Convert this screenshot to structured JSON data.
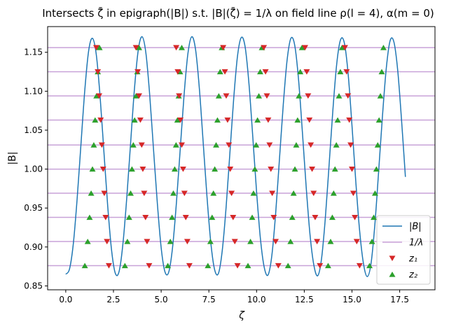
{
  "chart_data": {
    "type": "line",
    "title": "Intersects ζ̄ in epigraph(|B|) s.t. |B|(ζ̄) = 1/λ on field line ρ(l = 4), α(m = 0)",
    "xlabel": "ζ",
    "ylabel": "|B|",
    "xlim": [
      -0.95,
      19.35
    ],
    "ylim": [
      0.845,
      1.183
    ],
    "xticks": [
      0.0,
      2.5,
      5.0,
      7.5,
      10.0,
      12.5,
      15.0,
      17.5
    ],
    "xtick_labels": [
      "0.0",
      "2.5",
      "5.0",
      "7.5",
      "10.0",
      "12.5",
      "15.0",
      "17.5"
    ],
    "yticks": [
      0.85,
      0.9,
      0.95,
      1.0,
      1.05,
      1.1,
      1.15
    ],
    "ytick_labels": [
      "0.85",
      "0.90",
      "0.95",
      "1.00",
      "1.05",
      "1.10",
      "1.15"
    ],
    "grid": false,
    "legend_position": "lower-right",
    "colors": {
      "B": "#1f77b4",
      "lambda": "#c8a2d8",
      "z1": "#d62728",
      "z2": "#2ca02c"
    },
    "inv_lambda_levels": [
      0.876,
      0.907,
      0.938,
      0.969,
      1.0,
      1.031,
      1.063,
      1.094,
      1.125,
      1.156
    ],
    "B_curve": {
      "x": [
        0.0,
        0.2,
        0.4,
        0.6,
        0.8,
        1.0,
        1.2,
        1.4,
        1.6,
        1.8,
        2.0,
        2.2,
        2.4,
        2.6,
        2.8,
        3.0,
        3.2,
        3.4,
        3.6,
        3.8,
        4.0,
        4.2,
        4.4,
        4.6,
        4.8,
        5.0,
        5.2,
        5.4,
        5.6,
        5.8,
        6.0,
        6.2,
        6.4,
        6.6,
        6.8,
        7.0,
        7.2,
        7.4,
        7.6,
        7.8,
        8.0,
        8.2,
        8.4,
        8.6,
        8.8,
        9.0,
        9.2,
        9.4,
        9.6,
        9.8,
        10.0,
        10.2,
        10.4,
        10.6,
        10.8,
        11.0,
        11.2,
        11.4,
        11.6,
        11.8,
        12.0,
        12.2,
        12.4,
        12.6,
        12.8,
        13.0,
        13.2,
        13.4,
        13.6,
        13.8,
        14.0,
        14.2,
        14.4,
        14.6,
        14.8,
        15.0,
        15.2,
        15.4,
        15.6,
        15.8,
        16.0,
        16.2,
        16.4,
        16.6,
        16.8,
        17.0,
        17.2,
        17.4,
        17.6,
        17.8
      ],
      "y": [
        0.865,
        0.872,
        0.905,
        0.963,
        1.033,
        1.102,
        1.152,
        1.168,
        1.147,
        1.093,
        1.022,
        0.952,
        0.896,
        0.866,
        0.869,
        0.905,
        0.964,
        1.034,
        1.103,
        1.153,
        1.17,
        1.149,
        1.095,
        1.025,
        0.956,
        0.899,
        0.868,
        0.868,
        0.9,
        0.957,
        1.026,
        1.095,
        1.148,
        1.17,
        1.154,
        1.104,
        1.035,
        0.965,
        0.906,
        0.871,
        0.866,
        0.895,
        0.95,
        1.02,
        1.09,
        1.145,
        1.169,
        1.157,
        1.11,
        1.042,
        0.971,
        0.911,
        0.874,
        0.864,
        0.889,
        0.943,
        1.013,
        1.083,
        1.14,
        1.168,
        1.159,
        1.115,
        1.048,
        0.977,
        0.916,
        0.877,
        0.863,
        0.884,
        0.936,
        1.005,
        1.076,
        1.135,
        1.166,
        1.162,
        1.122,
        1.056,
        0.984,
        0.921,
        0.879,
        0.862,
        0.879,
        0.929,
        0.998,
        1.069,
        1.13,
        1.165,
        1.163,
        1.126,
        1.062,
        0.99
      ]
    },
    "z1_points": [
      {
        "x": 1.6,
        "y": 1.156
      },
      {
        "x": 1.68,
        "y": 1.125
      },
      {
        "x": 1.75,
        "y": 1.094
      },
      {
        "x": 1.83,
        "y": 1.063
      },
      {
        "x": 1.89,
        "y": 1.031
      },
      {
        "x": 1.96,
        "y": 1.0
      },
      {
        "x": 2.02,
        "y": 0.969
      },
      {
        "x": 2.09,
        "y": 0.938
      },
      {
        "x": 2.16,
        "y": 0.907
      },
      {
        "x": 2.26,
        "y": 0.876
      },
      {
        "x": 3.68,
        "y": 1.156
      },
      {
        "x": 3.77,
        "y": 1.125
      },
      {
        "x": 3.84,
        "y": 1.094
      },
      {
        "x": 3.91,
        "y": 1.063
      },
      {
        "x": 3.98,
        "y": 1.031
      },
      {
        "x": 4.04,
        "y": 1.0
      },
      {
        "x": 4.11,
        "y": 0.969
      },
      {
        "x": 4.18,
        "y": 0.938
      },
      {
        "x": 4.26,
        "y": 0.907
      },
      {
        "x": 4.37,
        "y": 0.876
      },
      {
        "x": 5.79,
        "y": 1.156
      },
      {
        "x": 5.87,
        "y": 1.125
      },
      {
        "x": 5.94,
        "y": 1.094
      },
      {
        "x": 6.01,
        "y": 1.063
      },
      {
        "x": 6.08,
        "y": 1.031
      },
      {
        "x": 6.15,
        "y": 1.0
      },
      {
        "x": 6.22,
        "y": 0.969
      },
      {
        "x": 6.29,
        "y": 0.938
      },
      {
        "x": 6.37,
        "y": 0.907
      },
      {
        "x": 6.48,
        "y": 0.876
      },
      {
        "x": 8.25,
        "y": 1.156
      },
      {
        "x": 8.34,
        "y": 1.125
      },
      {
        "x": 8.41,
        "y": 1.094
      },
      {
        "x": 8.48,
        "y": 1.063
      },
      {
        "x": 8.55,
        "y": 1.031
      },
      {
        "x": 8.62,
        "y": 1.0
      },
      {
        "x": 8.69,
        "y": 0.969
      },
      {
        "x": 8.77,
        "y": 0.938
      },
      {
        "x": 8.86,
        "y": 0.907
      },
      {
        "x": 9.0,
        "y": 0.876
      },
      {
        "x": 10.38,
        "y": 1.156
      },
      {
        "x": 10.47,
        "y": 1.125
      },
      {
        "x": 10.54,
        "y": 1.094
      },
      {
        "x": 10.61,
        "y": 1.063
      },
      {
        "x": 10.68,
        "y": 1.031
      },
      {
        "x": 10.75,
        "y": 1.0
      },
      {
        "x": 10.82,
        "y": 0.969
      },
      {
        "x": 10.9,
        "y": 0.938
      },
      {
        "x": 11.0,
        "y": 0.907
      },
      {
        "x": 11.14,
        "y": 0.876
      },
      {
        "x": 12.54,
        "y": 1.156
      },
      {
        "x": 12.63,
        "y": 1.125
      },
      {
        "x": 12.7,
        "y": 1.094
      },
      {
        "x": 12.77,
        "y": 1.063
      },
      {
        "x": 12.84,
        "y": 1.031
      },
      {
        "x": 12.91,
        "y": 1.0
      },
      {
        "x": 12.99,
        "y": 0.969
      },
      {
        "x": 13.07,
        "y": 0.938
      },
      {
        "x": 13.17,
        "y": 0.907
      },
      {
        "x": 13.32,
        "y": 0.876
      },
      {
        "x": 14.63,
        "y": 1.156
      },
      {
        "x": 14.72,
        "y": 1.125
      },
      {
        "x": 14.79,
        "y": 1.094
      },
      {
        "x": 14.86,
        "y": 1.063
      },
      {
        "x": 14.93,
        "y": 1.031
      },
      {
        "x": 15.0,
        "y": 1.0
      },
      {
        "x": 15.07,
        "y": 0.969
      },
      {
        "x": 15.15,
        "y": 0.938
      },
      {
        "x": 15.25,
        "y": 0.907
      },
      {
        "x": 15.4,
        "y": 0.876
      }
    ],
    "z2_points": [
      {
        "x": 1.0,
        "y": 0.876
      },
      {
        "x": 1.15,
        "y": 0.907
      },
      {
        "x": 1.25,
        "y": 0.938
      },
      {
        "x": 1.33,
        "y": 0.969
      },
      {
        "x": 1.4,
        "y": 1.0
      },
      {
        "x": 1.47,
        "y": 1.031
      },
      {
        "x": 1.54,
        "y": 1.063
      },
      {
        "x": 1.61,
        "y": 1.094
      },
      {
        "x": 1.68,
        "y": 1.125
      },
      {
        "x": 1.77,
        "y": 1.156
      },
      {
        "x": 3.1,
        "y": 0.876
      },
      {
        "x": 3.23,
        "y": 0.907
      },
      {
        "x": 3.32,
        "y": 0.938
      },
      {
        "x": 3.4,
        "y": 0.969
      },
      {
        "x": 3.47,
        "y": 1.0
      },
      {
        "x": 3.54,
        "y": 1.031
      },
      {
        "x": 3.61,
        "y": 1.063
      },
      {
        "x": 3.68,
        "y": 1.094
      },
      {
        "x": 3.75,
        "y": 1.125
      },
      {
        "x": 3.84,
        "y": 1.156
      },
      {
        "x": 5.35,
        "y": 0.876
      },
      {
        "x": 5.48,
        "y": 0.907
      },
      {
        "x": 5.57,
        "y": 0.938
      },
      {
        "x": 5.64,
        "y": 0.969
      },
      {
        "x": 5.71,
        "y": 1.0
      },
      {
        "x": 5.78,
        "y": 1.031
      },
      {
        "x": 5.85,
        "y": 1.063
      },
      {
        "x": 5.92,
        "y": 1.094
      },
      {
        "x": 5.99,
        "y": 1.125
      },
      {
        "x": 6.08,
        "y": 1.156
      },
      {
        "x": 7.45,
        "y": 0.876
      },
      {
        "x": 7.58,
        "y": 0.907
      },
      {
        "x": 7.67,
        "y": 0.938
      },
      {
        "x": 7.74,
        "y": 0.969
      },
      {
        "x": 7.81,
        "y": 1.0
      },
      {
        "x": 7.88,
        "y": 1.031
      },
      {
        "x": 7.95,
        "y": 1.063
      },
      {
        "x": 8.02,
        "y": 1.094
      },
      {
        "x": 8.09,
        "y": 1.125
      },
      {
        "x": 8.18,
        "y": 1.156
      },
      {
        "x": 9.55,
        "y": 0.876
      },
      {
        "x": 9.68,
        "y": 0.907
      },
      {
        "x": 9.77,
        "y": 0.938
      },
      {
        "x": 9.84,
        "y": 0.969
      },
      {
        "x": 9.91,
        "y": 1.0
      },
      {
        "x": 9.98,
        "y": 1.031
      },
      {
        "x": 10.05,
        "y": 1.063
      },
      {
        "x": 10.12,
        "y": 1.094
      },
      {
        "x": 10.19,
        "y": 1.125
      },
      {
        "x": 10.28,
        "y": 1.156
      },
      {
        "x": 11.65,
        "y": 0.876
      },
      {
        "x": 11.78,
        "y": 0.907
      },
      {
        "x": 11.87,
        "y": 0.938
      },
      {
        "x": 11.94,
        "y": 0.969
      },
      {
        "x": 12.01,
        "y": 1.0
      },
      {
        "x": 12.08,
        "y": 1.031
      },
      {
        "x": 12.15,
        "y": 1.063
      },
      {
        "x": 12.22,
        "y": 1.094
      },
      {
        "x": 12.29,
        "y": 1.125
      },
      {
        "x": 12.38,
        "y": 1.156
      },
      {
        "x": 13.75,
        "y": 0.876
      },
      {
        "x": 13.88,
        "y": 0.907
      },
      {
        "x": 13.97,
        "y": 0.938
      },
      {
        "x": 14.04,
        "y": 0.969
      },
      {
        "x": 14.11,
        "y": 1.0
      },
      {
        "x": 14.18,
        "y": 1.031
      },
      {
        "x": 14.25,
        "y": 1.063
      },
      {
        "x": 14.32,
        "y": 1.094
      },
      {
        "x": 14.39,
        "y": 1.125
      },
      {
        "x": 14.48,
        "y": 1.156
      },
      {
        "x": 15.92,
        "y": 0.876
      },
      {
        "x": 16.05,
        "y": 0.907
      },
      {
        "x": 16.14,
        "y": 0.938
      },
      {
        "x": 16.21,
        "y": 0.969
      },
      {
        "x": 16.28,
        "y": 1.0
      },
      {
        "x": 16.35,
        "y": 1.031
      },
      {
        "x": 16.42,
        "y": 1.063
      },
      {
        "x": 16.49,
        "y": 1.094
      },
      {
        "x": 16.56,
        "y": 1.125
      },
      {
        "x": 16.65,
        "y": 1.156
      }
    ],
    "legend": [
      {
        "key": "B",
        "label": "|B|",
        "kind": "line"
      },
      {
        "key": "lambda",
        "label": "1/λ",
        "kind": "line"
      },
      {
        "key": "z1",
        "label": "z₁",
        "kind": "tri-down"
      },
      {
        "key": "z2",
        "label": "z₂",
        "kind": "tri-up"
      }
    ]
  }
}
